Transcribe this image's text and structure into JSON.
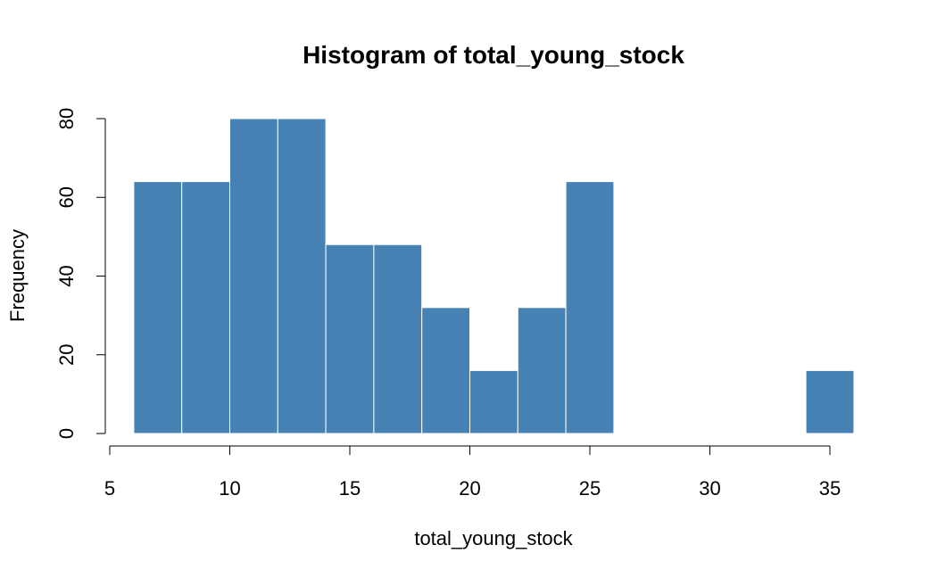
{
  "chart_data": {
    "type": "bar",
    "title": "Histogram of total_young_stock",
    "xlabel": "total_young_stock",
    "ylabel": "Frequency",
    "bar_color": "#4682B4",
    "bar_border_color": "#FFFFFF",
    "xlim": [
      5,
      36
    ],
    "ylim": [
      0,
      80
    ],
    "x_ticks": [
      5,
      10,
      15,
      20,
      25,
      30,
      35
    ],
    "y_ticks": [
      0,
      20,
      40,
      60,
      80
    ],
    "bins": [
      {
        "start": 6,
        "end": 8,
        "count": 64
      },
      {
        "start": 8,
        "end": 10,
        "count": 64
      },
      {
        "start": 10,
        "end": 12,
        "count": 80
      },
      {
        "start": 12,
        "end": 14,
        "count": 80
      },
      {
        "start": 14,
        "end": 16,
        "count": 48
      },
      {
        "start": 16,
        "end": 18,
        "count": 48
      },
      {
        "start": 18,
        "end": 20,
        "count": 32
      },
      {
        "start": 20,
        "end": 22,
        "count": 16
      },
      {
        "start": 22,
        "end": 24,
        "count": 32
      },
      {
        "start": 24,
        "end": 26,
        "count": 64
      },
      {
        "start": 26,
        "end": 28,
        "count": 0
      },
      {
        "start": 28,
        "end": 30,
        "count": 0
      },
      {
        "start": 30,
        "end": 32,
        "count": 0
      },
      {
        "start": 32,
        "end": 34,
        "count": 0
      },
      {
        "start": 34,
        "end": 36,
        "count": 16
      }
    ]
  }
}
